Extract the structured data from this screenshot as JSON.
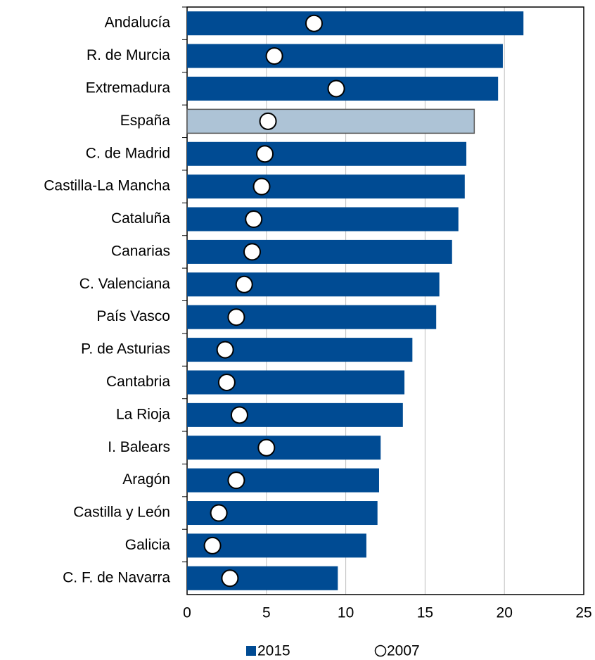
{
  "chart_data": {
    "type": "hbar_dot",
    "categories": [
      "Andalucía",
      "R. de Murcia",
      "Extremadura",
      "España",
      "C. de Madrid",
      "Castilla-La Mancha",
      "Cataluña",
      "Canarias",
      "C. Valenciana",
      "País Vasco",
      "P. de Asturias",
      "Cantabria",
      "La Rioja",
      "I. Balears",
      "Aragón",
      "Castilla y León",
      "Galicia",
      "C. F. de Navarra"
    ],
    "series": [
      {
        "name": "2015",
        "color": "#004b93",
        "colors": [
          "#004b93",
          "#004b93",
          "#004b93",
          "#adc3d6",
          "#004b93",
          "#004b93",
          "#004b93",
          "#004b93",
          "#004b93",
          "#004b93",
          "#004b93",
          "#004b93",
          "#004b93",
          "#004b93",
          "#004b93",
          "#004b93",
          "#004b93",
          "#004b93"
        ],
        "values": [
          21.2,
          19.9,
          19.6,
          18.1,
          17.6,
          17.5,
          17.1,
          16.7,
          15.9,
          15.7,
          14.2,
          13.7,
          13.6,
          12.2,
          12.1,
          12.0,
          11.3,
          9.5
        ]
      },
      {
        "name": "2007",
        "color": "#ffffff",
        "values": [
          8.0,
          5.5,
          9.4,
          5.1,
          4.9,
          4.7,
          4.2,
          4.1,
          3.6,
          3.1,
          2.4,
          2.5,
          3.3,
          5.0,
          3.1,
          2.0,
          1.6,
          2.7
        ]
      }
    ],
    "xlim": [
      0,
      25
    ],
    "xticks": [
      0,
      5,
      10,
      15,
      20,
      25
    ],
    "grid": true,
    "legend": "bottom"
  }
}
